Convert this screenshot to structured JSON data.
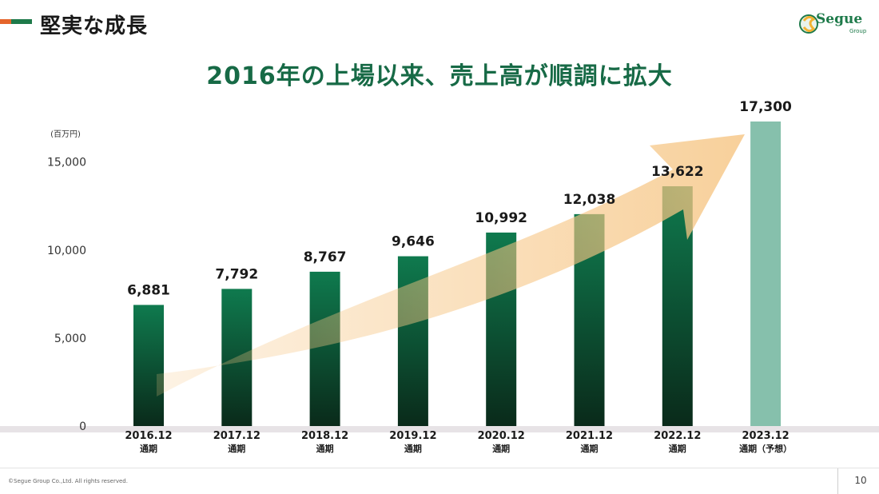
{
  "header": {
    "title": "堅実な成長",
    "subtitle": "2016年の上場以来、売上高が順調に拡大",
    "logo_text": "Segue",
    "logo_sub": "Group"
  },
  "footer": {
    "copyright": "©Segue Group Co.,Ltd. All rights reserved.",
    "page": "10"
  },
  "colors": {
    "accent_green": "#176a46",
    "bar_dark": "#0a2a1a",
    "bar_green": "#0f7a4e",
    "forecast_bar": "#86c0ac",
    "arrow": "#f6c583",
    "title_bar_orange": "#e5652b",
    "title_bar_green": "#1e7a4a"
  },
  "chart_data": {
    "type": "bar",
    "unit_label": "(百万円)",
    "categories": [
      [
        "2016.12",
        "通期"
      ],
      [
        "2017.12",
        "通期"
      ],
      [
        "2018.12",
        "通期"
      ],
      [
        "2019.12",
        "通期"
      ],
      [
        "2020.12",
        "通期"
      ],
      [
        "2021.12",
        "通期"
      ],
      [
        "2022.12",
        "通期"
      ],
      [
        "2023.12",
        "通期（予想）"
      ]
    ],
    "values": [
      6881,
      7792,
      8767,
      9646,
      10992,
      12038,
      13622,
      17300
    ],
    "value_labels": [
      "6,881",
      "7,792",
      "8,767",
      "9,646",
      "10,992",
      "12,038",
      "13,622",
      "17,300"
    ],
    "forecast": [
      false,
      false,
      false,
      false,
      false,
      false,
      false,
      true
    ],
    "y_ticks": [
      0,
      5000,
      10000,
      15000
    ],
    "y_tick_labels": [
      "0",
      "5,000",
      "10,000",
      "15,000"
    ],
    "ylim": [
      0,
      17300
    ],
    "grid": false,
    "trend_arrow": true
  }
}
